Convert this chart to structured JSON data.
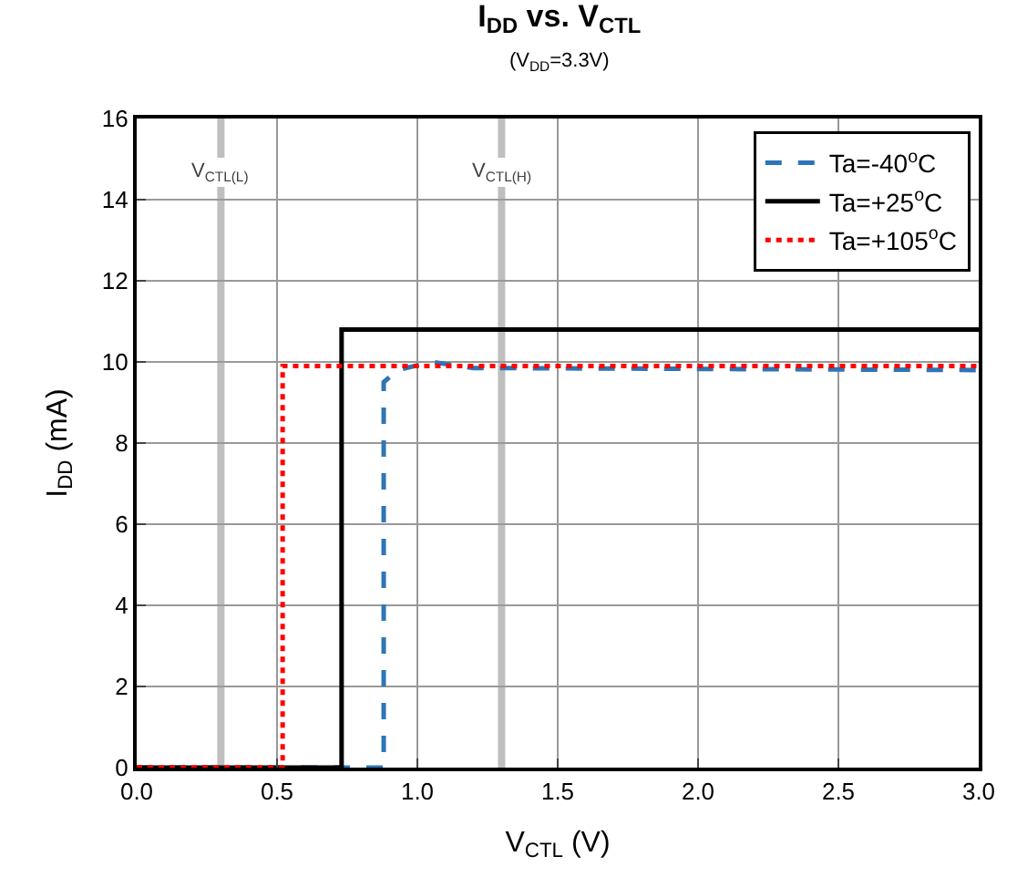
{
  "chart_data": {
    "type": "line",
    "title": "I$_{DD}$ vs. V$_{CTL}$",
    "subtitle": "(V$_{DD}$=3.3V)",
    "xlabel": "V$_{CTL}$ (V)",
    "ylabel": "I$_{DD}$ (mA)",
    "xlim": [
      0,
      3.0
    ],
    "xticks": [
      {
        "value": 0,
        "label": "0.0"
      },
      {
        "value": 0.5,
        "label": "0.5"
      },
      {
        "value": 1,
        "label": "1.0"
      },
      {
        "value": 1.5,
        "label": "1.5"
      },
      {
        "value": 2,
        "label": "2.0"
      },
      {
        "value": 2.5,
        "label": "2.5"
      },
      {
        "value": 3,
        "label": "3.0"
      }
    ],
    "ylim": [
      0,
      16
    ],
    "yticks": [
      0,
      2,
      4,
      6,
      8,
      10,
      12,
      14,
      16
    ],
    "grid": true,
    "legend": "top right",
    "marker": "none",
    "series": [
      {
        "name": "Ta=-40$^{o}$C",
        "color": "#2e75b6",
        "line_style": "dashed",
        "x": [
          0,
          0.88,
          0.88,
          0.93,
          1.05,
          1.2,
          3.0
        ],
        "values": [
          0,
          0,
          9.5,
          9.8,
          10.0,
          9.85,
          9.8
        ]
      },
      {
        "name": "Ta=+25$^{o}$C",
        "color": "#000000",
        "line_style": "solid",
        "x": [
          0,
          0.73,
          0.73,
          3.0
        ],
        "values": [
          0,
          0,
          10.8,
          10.8
        ]
      },
      {
        "name": "Ta=+105$^{o}$C",
        "color": "#ff0000",
        "line_style": "dotted",
        "x": [
          0,
          0.52,
          0.52,
          3.0
        ],
        "values": [
          0,
          0,
          9.9,
          9.9
        ]
      }
    ],
    "ref_lines": [
      {
        "axis": "x",
        "value": 0.3,
        "label": "V$_{CTL(L)}$",
        "color": "#bfbfbf"
      },
      {
        "axis": "x",
        "value": 1.3,
        "label": "V$_{CTL(H)}$",
        "color": "#bfbfbf"
      }
    ]
  }
}
